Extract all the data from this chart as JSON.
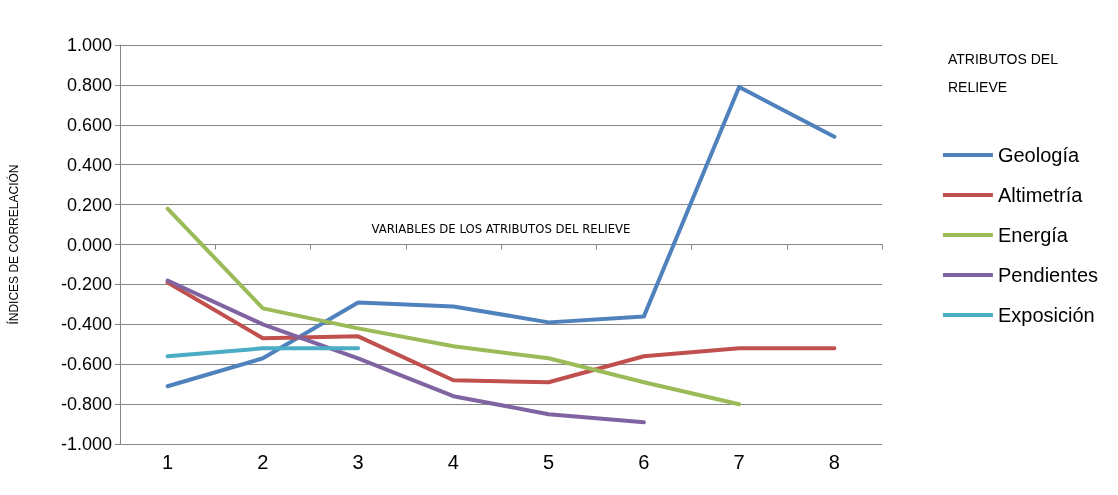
{
  "chart_data": {
    "type": "line",
    "xlabel": "VARIABLES DE LOS ATRIBUTOS DEL RELIEVE",
    "ylabel": "ÍNDICES DE CORRELACIÓN",
    "legend_title": "ATRIBUTOS DEL RELIEVE",
    "categories": [
      "1",
      "2",
      "3",
      "4",
      "5",
      "6",
      "7",
      "8"
    ],
    "series": [
      {
        "name": "Geología",
        "color": "#4f81bd",
        "values": [
          -0.71,
          -0.57,
          -0.29,
          -0.31,
          -0.39,
          -0.36,
          0.79,
          0.54
        ]
      },
      {
        "name": "Altimetría",
        "color": "#c0504d",
        "values": [
          -0.19,
          -0.47,
          -0.46,
          -0.68,
          -0.69,
          -0.56,
          -0.52,
          -0.52
        ]
      },
      {
        "name": "Energía",
        "color": "#9bbb59",
        "values": [
          0.18,
          -0.32,
          -0.42,
          -0.51,
          -0.57,
          -0.69,
          -0.8,
          null
        ]
      },
      {
        "name": "Pendientes",
        "color": "#8064a2",
        "values": [
          -0.18,
          -0.4,
          -0.57,
          -0.76,
          -0.85,
          -0.89,
          null,
          null
        ]
      },
      {
        "name": "Exposición",
        "color": "#4bacc6",
        "values": [
          -0.56,
          -0.52,
          -0.52,
          null,
          null,
          null,
          null,
          null
        ]
      }
    ],
    "ylim": [
      -1,
      1
    ],
    "yticks": [
      {
        "value": -1,
        "label": "-1.000"
      },
      {
        "value": -0.8,
        "label": "-0.800"
      },
      {
        "value": -0.6,
        "label": "-0.600"
      },
      {
        "value": -0.4,
        "label": "-0.400"
      },
      {
        "value": -0.2,
        "label": "-0.200"
      },
      {
        "value": 0,
        "label": "0.000"
      },
      {
        "value": 0.2,
        "label": "0.200"
      },
      {
        "value": 0.4,
        "label": "0.400"
      },
      {
        "value": 0.6,
        "label": "0.600"
      },
      {
        "value": 0.8,
        "label": "0.800"
      },
      {
        "value": 1,
        "label": "1.000"
      }
    ],
    "grid": "y",
    "legend": "right",
    "marker": "none",
    "line_style": "solid"
  }
}
